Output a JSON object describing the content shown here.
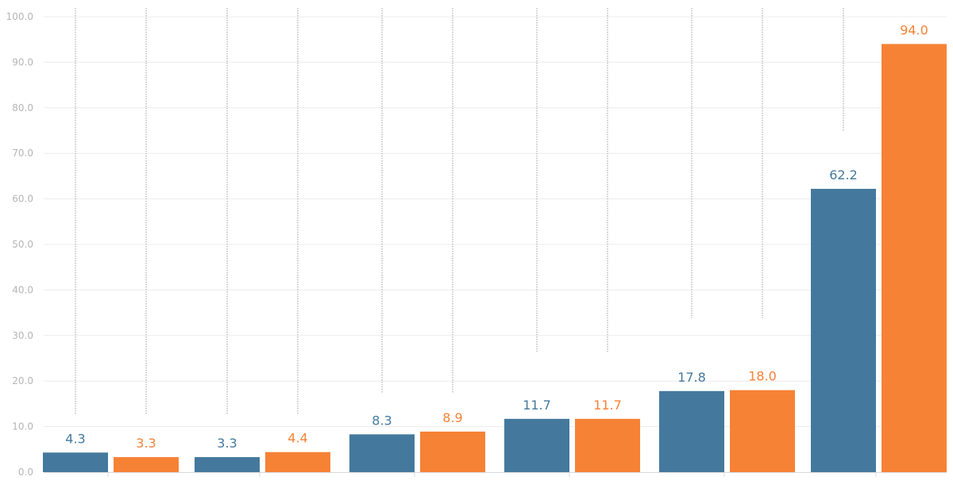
{
  "chart_data": {
    "type": "bar",
    "title": "",
    "xlabel": "",
    "ylabel": "",
    "ylim": [
      0,
      100
    ],
    "y_ticks": [
      "0.0",
      "10.0",
      "20.0",
      "30.0",
      "40.0",
      "50.0",
      "60.0",
      "70.0",
      "80.0",
      "90.0",
      "100.0"
    ],
    "grid": true,
    "legend": "none",
    "categories": [
      "",
      "",
      "",
      "",
      "",
      ""
    ],
    "series": [
      {
        "color": "#44799d",
        "values": [
          4.3,
          3.3,
          8.3,
          11.7,
          17.8,
          62.2
        ],
        "labels": [
          "4.3",
          "3.3",
          "8.3",
          "11.7",
          "17.8",
          "62.2"
        ],
        "whisker_top": [
          100.0,
          100.0,
          100.0,
          100.0,
          100.0,
          100.0
        ],
        "whisker_bottom": [
          12.8,
          12.8,
          17.3,
          26.4,
          33.8,
          75.0
        ]
      },
      {
        "color": "#f68236",
        "values": [
          3.3,
          4.4,
          8.9,
          11.7,
          18.0,
          94.0
        ],
        "labels": [
          "3.3",
          "4.4",
          "8.9",
          "11.7",
          "18.0",
          "94.0"
        ],
        "whisker_top": [
          100.0,
          100.0,
          100.0,
          100.0,
          100.0,
          null
        ],
        "whisker_bottom": [
          12.8,
          12.8,
          17.3,
          26.4,
          33.8,
          null
        ]
      }
    ]
  }
}
